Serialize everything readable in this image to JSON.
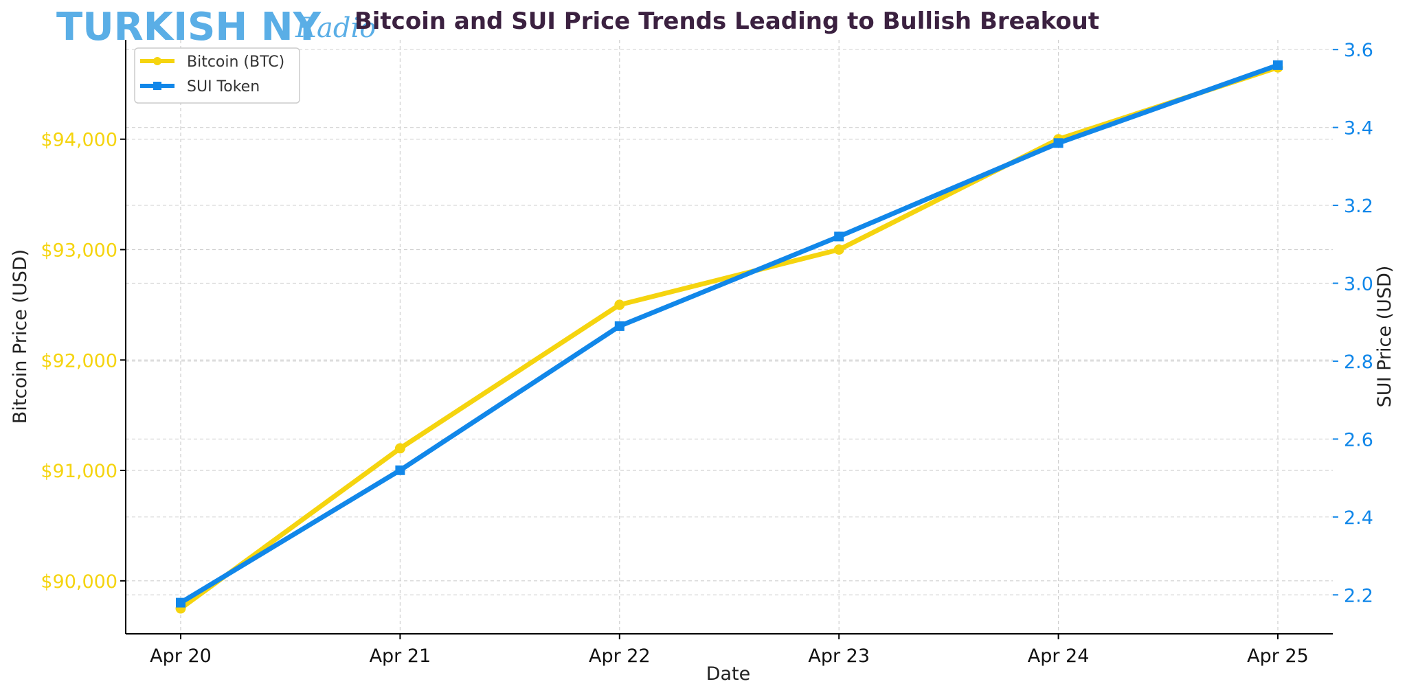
{
  "logo": {
    "main": "TURKISH NY",
    "script": "Radio",
    "main_color": "#5aaee6",
    "script_color": "#5aaee6"
  },
  "chart_data": {
    "type": "line",
    "title": "Bitcoin and SUI Price Trends Leading to Bullish Breakout",
    "xlabel": "Date",
    "ylabel_left": "Bitcoin Price (USD)",
    "ylabel_right": "SUI Price (USD)",
    "categories": [
      "Apr 20",
      "Apr 21",
      "Apr 22",
      "Apr 23",
      "Apr 24",
      "Apr 25"
    ],
    "series": [
      {
        "name": "Bitcoin (BTC)",
        "axis": "left",
        "color": "#f5d40f",
        "marker": "circle",
        "values": [
          89750,
          91200,
          92500,
          93000,
          94000,
          94650
        ]
      },
      {
        "name": "SUI Token",
        "axis": "right",
        "color": "#1187e9",
        "marker": "square",
        "values": [
          2.18,
          2.52,
          2.89,
          3.12,
          3.36,
          3.56
        ]
      }
    ],
    "y_left": {
      "range": [
        89520,
        94900
      ],
      "ticks": [
        90000,
        91000,
        92000,
        93000,
        94000
      ],
      "tick_labels": [
        "$90,000",
        "$91,000",
        "$92,000",
        "$93,000",
        "$94,000"
      ],
      "color": "#f5d40f"
    },
    "y_right": {
      "range": [
        2.1,
        3.625
      ],
      "ticks": [
        2.2,
        2.4,
        2.6,
        2.8,
        3.0,
        3.2,
        3.4,
        3.6
      ],
      "tick_labels": [
        "2.2",
        "2.4",
        "2.6",
        "2.8",
        "3.0",
        "3.2",
        "3.4",
        "3.6"
      ],
      "color": "#1187e9"
    },
    "grid": true,
    "legend_position": "top-left",
    "title_color": "#3b2140"
  }
}
